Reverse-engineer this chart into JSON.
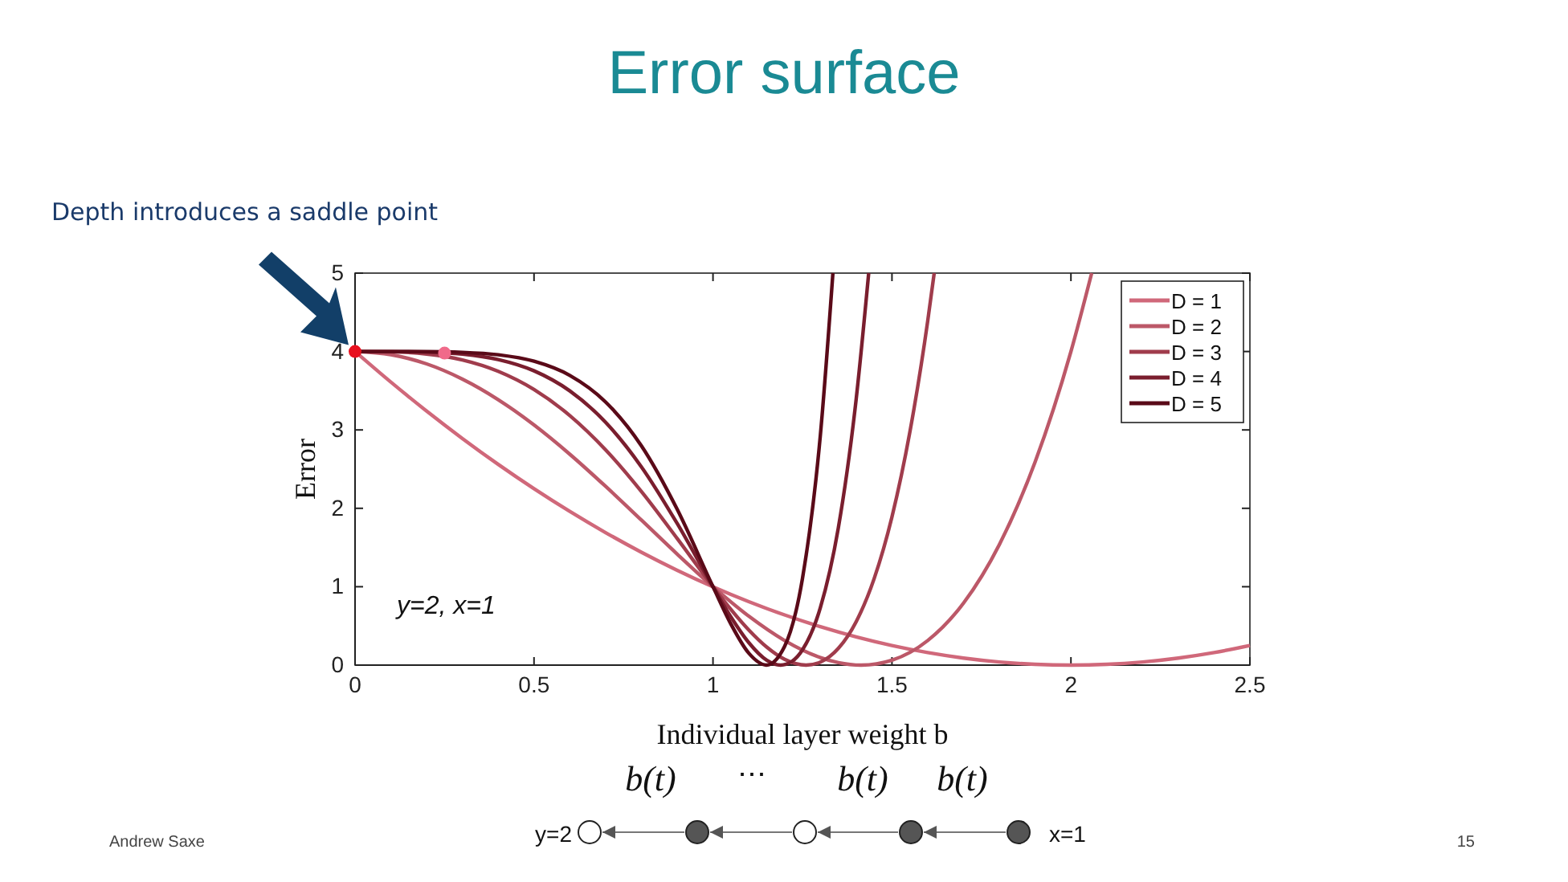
{
  "chart_data": {
    "type": "line",
    "title": "Error surface",
    "subtitle": "Depth introduces a saddle point",
    "xlabel": "Individual layer weight b",
    "ylabel": "Error",
    "xlim": [
      0,
      2.5
    ],
    "ylim": [
      0,
      5
    ],
    "xticks": [
      0,
      0.5,
      1,
      1.5,
      2,
      2.5
    ],
    "yticks": [
      0,
      1,
      2,
      3,
      4,
      5
    ],
    "grid": false,
    "legend": "top right",
    "marker": "none",
    "line_style": "solid",
    "series": [
      {
        "name": "D = 1",
        "color": "#d0687a",
        "x": [
          0,
          0.1,
          0.2,
          0.3,
          0.4,
          0.5,
          0.6,
          0.7,
          0.8,
          0.9,
          1,
          1.1,
          1.2,
          1.3,
          1.4,
          1.5,
          1.6,
          1.7,
          1.8,
          1.9,
          2,
          2.1,
          2.2,
          2.3,
          2.4,
          2.5
        ],
        "values": [
          4,
          3.61,
          3.24,
          2.89,
          2.56,
          2.25,
          1.96,
          1.69,
          1.44,
          1.21,
          1,
          0.81,
          0.64,
          0.49,
          0.36,
          0.25,
          0.16,
          0.09,
          0.04,
          0.01,
          0,
          0.01,
          0.04,
          0.09,
          0.16,
          0.25
        ]
      },
      {
        "name": "D = 2",
        "color": "#bc5868",
        "x": [
          0,
          0.1,
          0.2,
          0.3,
          0.4,
          0.5,
          0.6,
          0.7,
          0.8,
          0.9,
          1,
          1.1,
          1.2,
          1.3,
          1.35,
          1.414,
          1.5,
          1.6,
          1.7,
          1.8,
          1.9,
          2,
          2.058
        ],
        "values": [
          4,
          3.96,
          3.842,
          3.648,
          3.386,
          3.063,
          2.69,
          2.28,
          1.85,
          1.416,
          1,
          0.624,
          0.314,
          0.096,
          0.032,
          0,
          0.063,
          0.314,
          0.792,
          1.538,
          2.592,
          4,
          5
        ]
      },
      {
        "name": "D = 3",
        "color": "#a03c4c",
        "x": [
          0,
          0.1,
          0.2,
          0.3,
          0.4,
          0.5,
          0.6,
          0.7,
          0.8,
          0.9,
          1,
          1.05,
          1.1,
          1.15,
          1.2,
          1.26,
          1.3,
          1.35,
          1.4,
          1.45,
          1.5,
          1.55,
          1.6,
          1.618
        ],
        "values": [
          4,
          3.996,
          3.968,
          3.893,
          3.748,
          3.516,
          3.183,
          2.746,
          2.214,
          1.615,
          1,
          0.71,
          0.448,
          0.23,
          0.074,
          0,
          0.039,
          0.212,
          0.554,
          1.1,
          1.891,
          2.972,
          4.393,
          5
        ]
      },
      {
        "name": "D = 4",
        "color": "#7a1e2e",
        "x": [
          0,
          0.1,
          0.2,
          0.3,
          0.4,
          0.5,
          0.6,
          0.7,
          0.8,
          0.9,
          1,
          1.05,
          1.1,
          1.15,
          1.189,
          1.22,
          1.25,
          1.3,
          1.35,
          1.4,
          1.435
        ],
        "values": [
          4,
          4,
          3.994,
          3.968,
          3.898,
          3.754,
          3.498,
          3.097,
          2.529,
          1.806,
          1,
          0.615,
          0.287,
          0.063,
          0,
          0.046,
          0.195,
          0.733,
          1.746,
          3.392,
          5
        ]
      },
      {
        "name": "D = 5",
        "color": "#5a0a18",
        "x": [
          0,
          0.1,
          0.2,
          0.3,
          0.4,
          0.5,
          0.6,
          0.7,
          0.8,
          0.9,
          1,
          1.05,
          1.1,
          1.149,
          1.2,
          1.25,
          1.3,
          1.335
        ],
        "values": [
          4,
          4,
          3.999,
          3.99,
          3.959,
          3.876,
          3.695,
          3.356,
          2.797,
          1.987,
          1,
          0.524,
          0.152,
          0,
          0.238,
          1.106,
          2.934,
          5
        ]
      },
      {
        "type": "scatter",
        "marker": "circle",
        "color": "#e8101e",
        "x": [
          0
        ],
        "values": [
          4
        ]
      },
      {
        "type": "scatter",
        "marker": "circle",
        "color": "#f06a8a",
        "x": [
          0.25
        ],
        "values": [
          3.98
        ]
      }
    ],
    "annotations": [
      "y=2, x=1",
      "b(t)",
      "⋯",
      "b(t)",
      "b(t)",
      "y=2",
      "x=1",
      "Andrew Saxe",
      "15"
    ]
  }
}
